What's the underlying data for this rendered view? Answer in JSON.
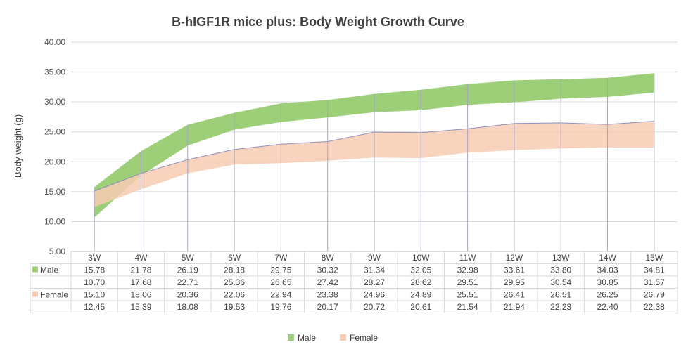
{
  "chart_data": {
    "type": "area",
    "title": "B-hIGF1R mice plus: Body Weight Growth Curve",
    "ylabel": "Body weight (g)",
    "xlabel": "",
    "ylim": [
      5,
      40
    ],
    "y_ticks": [
      "40.00",
      "35.00",
      "30.00",
      "25.00",
      "20.00",
      "15.00",
      "10.00",
      "5.00"
    ],
    "categories": [
      "3W",
      "4W",
      "5W",
      "6W",
      "7W",
      "8W",
      "9W",
      "10W",
      "11W",
      "12W",
      "13W",
      "14W",
      "15W"
    ],
    "series": [
      {
        "name": "Male",
        "color": "#9dce78",
        "upper": [
          15.78,
          21.78,
          26.19,
          28.18,
          29.75,
          30.32,
          31.34,
          32.05,
          32.98,
          33.61,
          33.8,
          34.03,
          34.81
        ],
        "lower": [
          10.7,
          17.68,
          22.71,
          25.36,
          26.65,
          27.42,
          28.27,
          28.62,
          29.51,
          29.95,
          30.54,
          30.85,
          31.57
        ]
      },
      {
        "name": "Female",
        "color": "#f7cbb1",
        "upper": [
          15.1,
          18.06,
          20.36,
          22.06,
          22.94,
          23.38,
          24.96,
          24.89,
          25.51,
          26.41,
          26.51,
          26.25,
          26.79
        ],
        "lower": [
          12.45,
          15.39,
          18.08,
          19.53,
          19.76,
          20.17,
          20.72,
          20.61,
          21.54,
          21.94,
          22.23,
          22.4,
          22.38
        ]
      }
    ],
    "table_rows": [
      {
        "label": "Male",
        "color": "#9dce78",
        "values": [
          "15.78",
          "21.78",
          "26.19",
          "28.18",
          "29.75",
          "30.32",
          "31.34",
          "32.05",
          "32.98",
          "33.61",
          "33.80",
          "34.03",
          "34.81"
        ]
      },
      {
        "label": "",
        "color": "",
        "values": [
          "10.70",
          "17.68",
          "22.71",
          "25.36",
          "26.65",
          "27.42",
          "28.27",
          "28.62",
          "29.51",
          "29.95",
          "30.54",
          "30.85",
          "31.57"
        ]
      },
      {
        "label": "Female",
        "color": "#f7cbb1",
        "values": [
          "15.10",
          "18.06",
          "20.36",
          "22.06",
          "22.94",
          "23.38",
          "24.96",
          "24.89",
          "25.51",
          "26.41",
          "26.51",
          "26.25",
          "26.79"
        ]
      },
      {
        "label": "",
        "color": "",
        "values": [
          "12.45",
          "15.39",
          "18.08",
          "19.53",
          "19.76",
          "20.17",
          "20.72",
          "20.61",
          "21.54",
          "21.94",
          "22.23",
          "22.40",
          "22.38"
        ]
      }
    ],
    "legend": [
      {
        "label": "Male",
        "color": "#9dce78"
      },
      {
        "label": "Female",
        "color": "#f7cbb1"
      }
    ],
    "legend_position": "bottom",
    "grid": true
  }
}
